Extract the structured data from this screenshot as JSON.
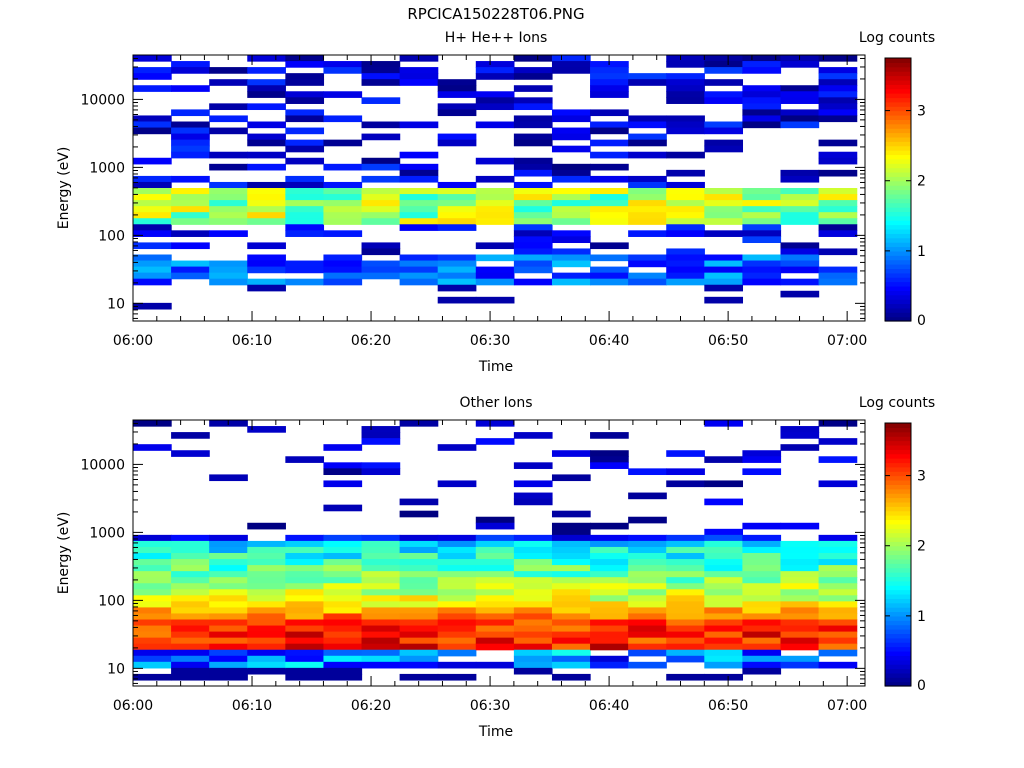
{
  "figure_title": "RPCICA150228T06.PNG",
  "chart_data": [
    {
      "type": "heatmap",
      "title": "H+ He++ Ions",
      "xlabel": "Time",
      "ylabel": "Energy (eV)",
      "yscale": "log",
      "ylim": [
        5.5,
        45000
      ],
      "xlim": [
        "06:00",
        "07:01"
      ],
      "x_ticks": [
        "06:00",
        "06:10",
        "06:20",
        "06:30",
        "06:40",
        "06:50",
        "07:00"
      ],
      "y_ticks": [
        "10",
        "100",
        "1000",
        "10000"
      ],
      "colorbar": {
        "label": "Log counts",
        "ticks": [
          "0",
          "1",
          "2",
          "3"
        ],
        "range": [
          0,
          3.75
        ]
      },
      "time_bin_start_minutes": [
        0,
        3.2,
        6.4,
        9.6,
        12.8,
        16,
        19.2,
        22.4,
        25.6,
        28.8,
        32,
        35.2,
        38.4,
        41.6,
        44.8,
        48,
        51.2,
        54.4,
        57.6
      ],
      "time_bin_width_minutes": 3.2,
      "grid": false,
      "legend": "colorbar-right",
      "description": "Sparse scattered low counts (0-1) at energies above 500 eV; a continuous band of 1.5-2.5 log counts between about 150 and 500 eV; intermittent low counts (0.5-1.3) between 20 and 50 eV."
    },
    {
      "type": "heatmap",
      "title": "Other Ions",
      "xlabel": "Time",
      "ylabel": "Energy (eV)",
      "yscale": "log",
      "ylim": [
        5.5,
        45000
      ],
      "xlim": [
        "06:00",
        "07:01"
      ],
      "x_ticks": [
        "06:00",
        "06:10",
        "06:20",
        "06:30",
        "06:40",
        "06:50",
        "07:00"
      ],
      "y_ticks": [
        "10",
        "100",
        "1000",
        "10000"
      ],
      "colorbar": {
        "label": "Log counts",
        "ticks": [
          "0",
          "1",
          "2",
          "3"
        ],
        "range": [
          0,
          3.75
        ]
      },
      "time_bin_start_minutes": [
        0,
        3.2,
        6.4,
        9.6,
        12.8,
        16,
        19.2,
        22.4,
        25.6,
        28.8,
        32,
        35.2,
        38.4,
        41.6,
        44.8,
        48,
        51.2,
        54.4,
        57.6
      ],
      "time_bin_width_minutes": 3.2,
      "grid": false,
      "legend": "colorbar-right",
      "description": "Counts rise with decreasing energy: sparse low counts above 1000 eV, 1-2.5 log counts between 100 and 800 eV, peak of about 3-3.5 log counts between 20 and 40 eV, low counts 10-20 eV."
    }
  ]
}
